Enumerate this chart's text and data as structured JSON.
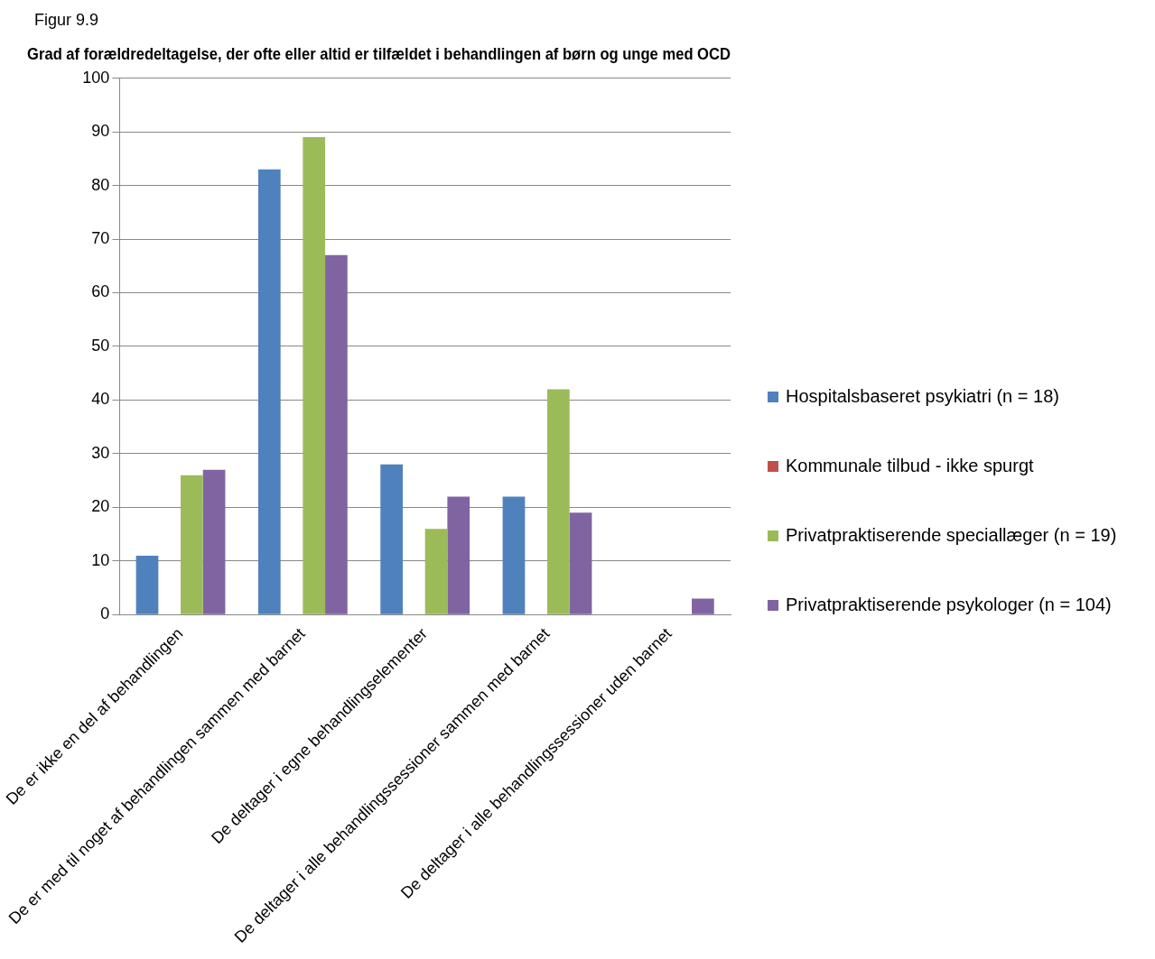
{
  "chart_data": {
    "type": "bar",
    "title": "Grad af forældredeltagelse, der ofte eller altid er tilfældet i behandlingen af børn og unge med OCD",
    "annotations": [
      "Figur 9.9"
    ],
    "categories": [
      "De er ikke en del af behandlingen",
      "De er med til noget af behandlingen sammen med barnet",
      "De deltager i egne behandlingselementer",
      "De deltager i alle behandlingssessioner sammen med barnet",
      "De deltager i alle behandlingssessioner uden barnet"
    ],
    "series": [
      {
        "name": "Hospitalsbaseret psykiatri (n = 18)",
        "color": "#4f81bd",
        "values": [
          11,
          83,
          28,
          22,
          null
        ]
      },
      {
        "name": "Kommunale tilbud - ikke spurgt",
        "color": "#c0504d",
        "values": [
          null,
          null,
          null,
          null,
          null
        ]
      },
      {
        "name": "Privatpraktiserende speciallæger (n = 19)",
        "color": "#9bbb59",
        "values": [
          26,
          89,
          16,
          42,
          null
        ]
      },
      {
        "name": "Privatpraktiserende psykologer (n = 104)",
        "color": "#8064a2",
        "values": [
          27,
          67,
          22,
          19,
          3
        ]
      }
    ],
    "ylim": [
      0,
      100
    ],
    "yticks": [
      0,
      10,
      20,
      30,
      40,
      50,
      60,
      70,
      80,
      90,
      100
    ],
    "grid": "y",
    "legend": "right"
  }
}
